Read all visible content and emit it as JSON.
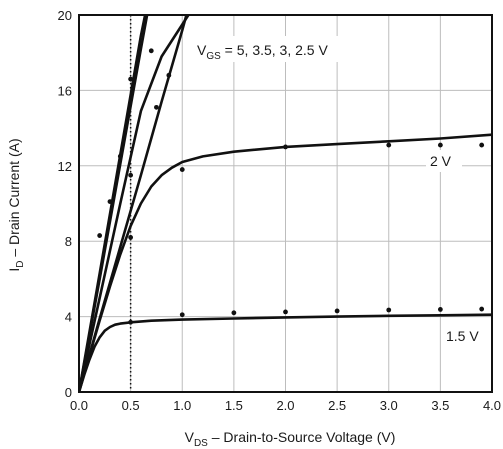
{
  "chart_data": {
    "type": "line",
    "title": "",
    "xlabel": {
      "main": "V",
      "sub": "DS",
      "rest": " – Drain-to-Source Voltage (V)"
    },
    "ylabel": {
      "main": "I",
      "sub": "D",
      "rest": " – Drain Current (A)"
    },
    "xlim": [
      0,
      4.0
    ],
    "ylim": [
      0,
      20
    ],
    "x_ticks": [
      "0.0",
      "0.5",
      "1.0",
      "1.5",
      "2.0",
      "2.5",
      "3.0",
      "3.5",
      "4.0"
    ],
    "y_ticks": [
      "0",
      "4",
      "8",
      "12",
      "16",
      "20"
    ],
    "grid": true,
    "reference_line": {
      "x": 0.5,
      "style": "dotted"
    },
    "annotations": {
      "vgs_group": {
        "main": "V",
        "sub": "GS",
        "rest": " = 5, 3.5, 3, 2.5 V"
      },
      "two_v": "2 V",
      "one_five_v": "1.5 V"
    },
    "series": [
      {
        "label": "5",
        "x": [
          0,
          0.2,
          0.4,
          0.6,
          0.64
        ],
        "y": [
          0,
          6.3,
          12.6,
          18.9,
          20
        ]
      },
      {
        "label": "3.5",
        "x": [
          0,
          0.2,
          0.4,
          0.6,
          0.66
        ],
        "y": [
          0,
          6.0,
          12.1,
          18.2,
          20
        ]
      },
      {
        "label": "3",
        "x": [
          0,
          0.2,
          0.4,
          0.6,
          0.8,
          1.06
        ],
        "y": [
          0,
          5.0,
          10.0,
          14.9,
          17.8,
          20
        ]
      },
      {
        "label": "2.5",
        "x": [
          0,
          0.2,
          0.4,
          0.6,
          0.8,
          1.0,
          1.04
        ],
        "y": [
          0,
          3.9,
          7.7,
          11.5,
          15.4,
          19.2,
          20
        ]
      },
      {
        "label": "2 V",
        "x": [
          0,
          0.1,
          0.2,
          0.3,
          0.4,
          0.5,
          0.6,
          0.7,
          0.8,
          0.9,
          1.0,
          1.2,
          1.5,
          2.0,
          2.5,
          3.0,
          3.5,
          4.0
        ],
        "y": [
          0,
          1.9,
          3.8,
          5.6,
          7.3,
          8.8,
          10.0,
          10.9,
          11.5,
          11.9,
          12.2,
          12.5,
          12.75,
          13.0,
          13.15,
          13.3,
          13.45,
          13.65
        ]
      },
      {
        "label": "1.5 V",
        "x": [
          0,
          0.05,
          0.1,
          0.15,
          0.2,
          0.25,
          0.3,
          0.35,
          0.4,
          0.5,
          0.7,
          1.0,
          1.5,
          2.0,
          2.5,
          3.0,
          3.5,
          4.0
        ],
        "y": [
          0,
          0.9,
          1.7,
          2.4,
          2.9,
          3.25,
          3.45,
          3.57,
          3.63,
          3.7,
          3.78,
          3.84,
          3.9,
          3.96,
          4.0,
          4.04,
          4.07,
          4.1
        ]
      }
    ],
    "markers": {
      "x": [
        0.5,
        0.7,
        0.75,
        0.87,
        0.2,
        0.3,
        0.4,
        0.5,
        0.5,
        1.0,
        2.0,
        3.0,
        3.5,
        3.9,
        0.5,
        1.0,
        1.5,
        2.0,
        2.5,
        3.0,
        3.5,
        3.9
      ],
      "y": [
        16.6,
        18.1,
        15.1,
        16.8,
        8.3,
        10.1,
        12.5,
        11.5,
        8.2,
        11.8,
        13.0,
        13.1,
        13.1,
        13.1,
        3.7,
        4.1,
        4.2,
        4.25,
        4.3,
        4.35,
        4.38,
        4.4
      ]
    }
  }
}
